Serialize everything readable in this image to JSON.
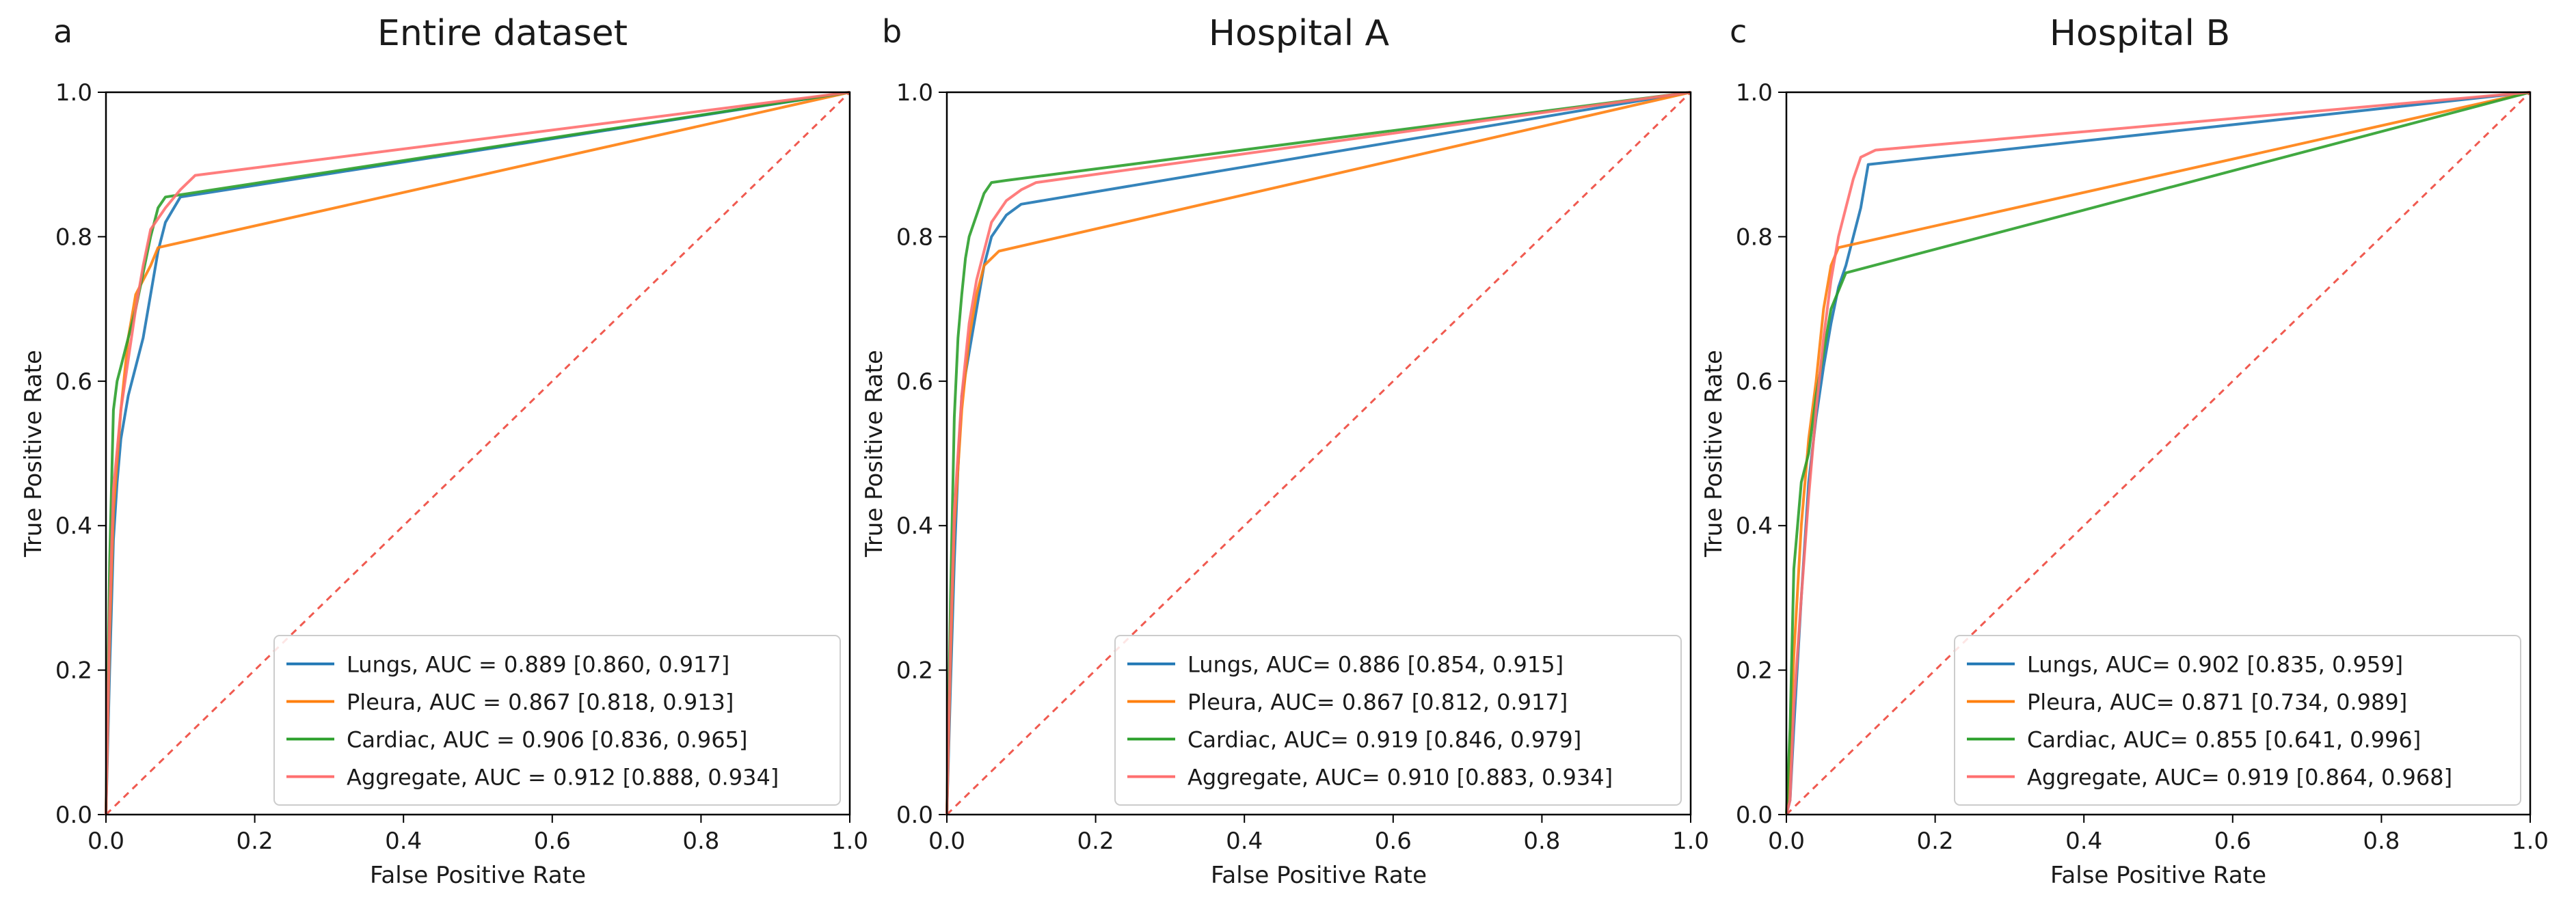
{
  "chart_data": [
    {
      "type": "line",
      "panel_label": "a",
      "title": "Entire dataset",
      "xlabel": "False Positive Rate",
      "ylabel": "True Positive Rate",
      "xlim": [
        0,
        1
      ],
      "ylim": [
        0,
        1
      ],
      "xticks": [
        "0.0",
        "0.2",
        "0.4",
        "0.6",
        "0.8",
        "1.0"
      ],
      "yticks": [
        "0.0",
        "0.2",
        "0.4",
        "0.6",
        "0.8",
        "1.0"
      ],
      "legend_position": "lower-right",
      "chance_line": true,
      "series": [
        {
          "name": "Lungs",
          "legend": "Lungs, AUC = 0.889 [0.860, 0.917]",
          "color": "#1f77b4",
          "x": [
            0,
            0.005,
            0.01,
            0.015,
            0.02,
            0.03,
            0.04,
            0.05,
            0.06,
            0.07,
            0.08,
            0.1,
            1.0
          ],
          "y": [
            0,
            0.2,
            0.38,
            0.46,
            0.52,
            0.58,
            0.62,
            0.66,
            0.72,
            0.78,
            0.82,
            0.855,
            1.0
          ]
        },
        {
          "name": "Pleura",
          "legend": "Pleura, AUC = 0.867 [0.818, 0.913]",
          "color": "#ff7f0e",
          "x": [
            0,
            0.005,
            0.01,
            0.02,
            0.03,
            0.04,
            0.06,
            0.07,
            1.0
          ],
          "y": [
            0,
            0.25,
            0.42,
            0.56,
            0.66,
            0.72,
            0.76,
            0.785,
            1.0
          ]
        },
        {
          "name": "Cardiac",
          "legend": "Cardiac, AUC = 0.906 [0.836, 0.965]",
          "color": "#2ca02c",
          "x": [
            0,
            0.005,
            0.01,
            0.015,
            0.02,
            0.03,
            0.04,
            0.05,
            0.06,
            0.07,
            0.08,
            1.0
          ],
          "y": [
            0,
            0.35,
            0.56,
            0.6,
            0.62,
            0.66,
            0.7,
            0.75,
            0.8,
            0.84,
            0.855,
            1.0
          ]
        },
        {
          "name": "Aggregate",
          "legend": "Aggregate, AUC = 0.912 [0.888, 0.934]",
          "color": "#ff6f6f",
          "x": [
            0,
            0.005,
            0.01,
            0.02,
            0.03,
            0.04,
            0.05,
            0.06,
            0.08,
            0.1,
            0.12,
            1.0
          ],
          "y": [
            0,
            0.28,
            0.45,
            0.56,
            0.63,
            0.7,
            0.76,
            0.81,
            0.84,
            0.865,
            0.885,
            1.0
          ]
        }
      ]
    },
    {
      "type": "line",
      "panel_label": "b",
      "title": "Hospital A",
      "xlabel": "False Positive Rate",
      "ylabel": "True Positive Rate",
      "xlim": [
        0,
        1
      ],
      "ylim": [
        0,
        1
      ],
      "xticks": [
        "0.0",
        "0.2",
        "0.4",
        "0.6",
        "0.8",
        "1.0"
      ],
      "yticks": [
        "0.0",
        "0.2",
        "0.4",
        "0.6",
        "0.8",
        "1.0"
      ],
      "legend_position": "lower-right",
      "chance_line": true,
      "series": [
        {
          "name": "Lungs",
          "legend": "Lungs, AUC= 0.886 [0.854, 0.915]",
          "color": "#1f77b4",
          "x": [
            0,
            0.005,
            0.01,
            0.015,
            0.02,
            0.03,
            0.04,
            0.05,
            0.06,
            0.08,
            0.1,
            1.0
          ],
          "y": [
            0,
            0.18,
            0.35,
            0.48,
            0.58,
            0.64,
            0.7,
            0.76,
            0.8,
            0.83,
            0.845,
            1.0
          ]
        },
        {
          "name": "Pleura",
          "legend": "Pleura, AUC= 0.867 [0.812, 0.917]",
          "color": "#ff7f0e",
          "x": [
            0,
            0.005,
            0.01,
            0.02,
            0.03,
            0.04,
            0.05,
            0.07,
            1.0
          ],
          "y": [
            0,
            0.22,
            0.4,
            0.56,
            0.66,
            0.72,
            0.76,
            0.78,
            1.0
          ]
        },
        {
          "name": "Cardiac",
          "legend": "Cardiac, AUC= 0.919 [0.846, 0.979]",
          "color": "#2ca02c",
          "x": [
            0,
            0.005,
            0.01,
            0.015,
            0.02,
            0.025,
            0.03,
            0.04,
            0.05,
            0.06,
            0.08,
            1.0
          ],
          "y": [
            0,
            0.3,
            0.55,
            0.66,
            0.72,
            0.77,
            0.8,
            0.83,
            0.86,
            0.875,
            0.878,
            1.0
          ]
        },
        {
          "name": "Aggregate",
          "legend": "Aggregate, AUC= 0.910 [0.883, 0.934]",
          "color": "#ff6f6f",
          "x": [
            0,
            0.005,
            0.01,
            0.02,
            0.03,
            0.04,
            0.05,
            0.06,
            0.08,
            0.1,
            0.12,
            1.0
          ],
          "y": [
            0,
            0.24,
            0.42,
            0.58,
            0.68,
            0.74,
            0.78,
            0.82,
            0.85,
            0.865,
            0.875,
            1.0
          ]
        }
      ]
    },
    {
      "type": "line",
      "panel_label": "c",
      "title": "Hospital B",
      "xlabel": "False Positive Rate",
      "ylabel": "True Positive Rate",
      "xlim": [
        0,
        1
      ],
      "ylim": [
        0,
        1
      ],
      "xticks": [
        "0.0",
        "0.2",
        "0.4",
        "0.6",
        "0.8",
        "1.0"
      ],
      "yticks": [
        "0.0",
        "0.2",
        "0.4",
        "0.6",
        "0.8",
        "1.0"
      ],
      "legend_position": "lower-right",
      "chance_line": true,
      "series": [
        {
          "name": "Lungs",
          "legend": "Lungs, AUC= 0.902 [0.835, 0.959]",
          "color": "#1f77b4",
          "x": [
            0,
            0.005,
            0.01,
            0.02,
            0.03,
            0.04,
            0.05,
            0.06,
            0.07,
            0.08,
            0.09,
            0.1,
            0.11,
            1.0
          ],
          "y": [
            0,
            0.02,
            0.12,
            0.3,
            0.46,
            0.55,
            0.62,
            0.68,
            0.73,
            0.76,
            0.8,
            0.84,
            0.9,
            1.0
          ]
        },
        {
          "name": "Pleura",
          "legend": "Pleura, AUC= 0.871 [0.734, 0.989]",
          "color": "#ff7f0e",
          "x": [
            0,
            0.005,
            0.01,
            0.02,
            0.03,
            0.04,
            0.05,
            0.06,
            0.07,
            1.0
          ],
          "y": [
            0,
            0.08,
            0.22,
            0.4,
            0.52,
            0.6,
            0.7,
            0.76,
            0.785,
            1.0
          ]
        },
        {
          "name": "Cardiac",
          "legend": "Cardiac, AUC= 0.855 [0.641, 0.996]",
          "color": "#2ca02c",
          "x": [
            0,
            0.005,
            0.01,
            0.02,
            0.03,
            0.04,
            0.05,
            0.06,
            0.08,
            1.0
          ],
          "y": [
            0,
            0.12,
            0.34,
            0.46,
            0.5,
            0.58,
            0.64,
            0.7,
            0.75,
            1.0
          ]
        },
        {
          "name": "Aggregate",
          "legend": "Aggregate, AUC= 0.919 [0.864, 0.968]",
          "color": "#ff6f6f",
          "x": [
            0,
            0.005,
            0.01,
            0.02,
            0.03,
            0.04,
            0.05,
            0.06,
            0.07,
            0.08,
            0.09,
            0.1,
            0.12,
            1.0
          ],
          "y": [
            0,
            0.02,
            0.15,
            0.3,
            0.44,
            0.56,
            0.66,
            0.74,
            0.8,
            0.84,
            0.88,
            0.91,
            0.92,
            1.0
          ]
        }
      ]
    }
  ]
}
